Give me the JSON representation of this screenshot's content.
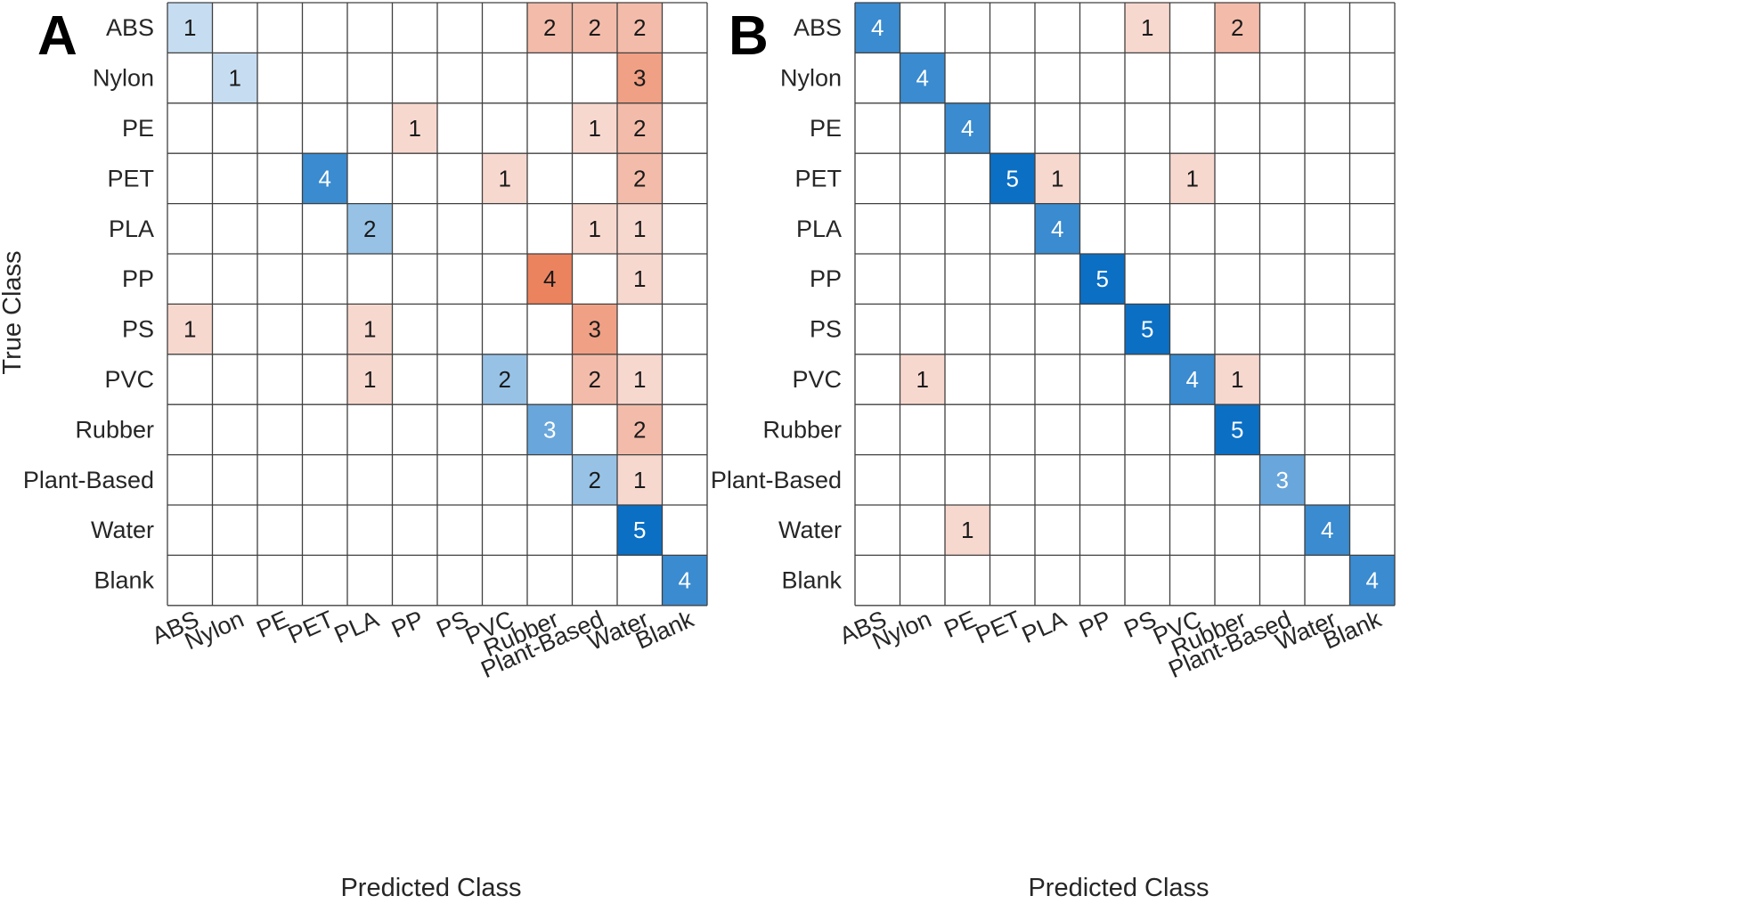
{
  "chart_data": [
    {
      "type": "heatmap",
      "panel": "A",
      "xlabel": "Predicted Class",
      "ylabel": "True Class",
      "rows": [
        "ABS",
        "Nylon",
        "PE",
        "PET",
        "PLA",
        "PP",
        "PS",
        "PVC",
        "Rubber",
        "Plant-Based",
        "Water",
        "Blank"
      ],
      "columns": [
        "ABS",
        "Nylon",
        "PE",
        "PET",
        "PLA",
        "PP",
        "PS",
        "PVC",
        "Rubber",
        "Plant-Based",
        "Water",
        "Blank"
      ],
      "values": [
        [
          1,
          0,
          0,
          0,
          0,
          0,
          0,
          0,
          2,
          2,
          2,
          0
        ],
        [
          0,
          1,
          0,
          0,
          0,
          0,
          0,
          0,
          0,
          0,
          3,
          0
        ],
        [
          0,
          0,
          0,
          0,
          0,
          1,
          0,
          0,
          0,
          1,
          2,
          0
        ],
        [
          0,
          0,
          0,
          4,
          0,
          0,
          0,
          1,
          0,
          0,
          2,
          0
        ],
        [
          0,
          0,
          0,
          0,
          2,
          0,
          0,
          0,
          0,
          1,
          1,
          0
        ],
        [
          0,
          0,
          0,
          0,
          0,
          0,
          0,
          0,
          4,
          0,
          1,
          0
        ],
        [
          1,
          0,
          0,
          0,
          1,
          0,
          0,
          0,
          0,
          3,
          0,
          0
        ],
        [
          0,
          0,
          0,
          0,
          1,
          0,
          0,
          2,
          0,
          2,
          1,
          0
        ],
        [
          0,
          0,
          0,
          0,
          0,
          0,
          0,
          0,
          3,
          0,
          2,
          0
        ],
        [
          0,
          0,
          0,
          0,
          0,
          0,
          0,
          0,
          0,
          2,
          1,
          0
        ],
        [
          0,
          0,
          0,
          0,
          0,
          0,
          0,
          0,
          0,
          0,
          5,
          0
        ],
        [
          0,
          0,
          0,
          0,
          0,
          0,
          0,
          0,
          0,
          0,
          0,
          4
        ]
      ]
    },
    {
      "type": "heatmap",
      "panel": "B",
      "xlabel": "Predicted Class",
      "ylabel": "",
      "rows": [
        "ABS",
        "Nylon",
        "PE",
        "PET",
        "PLA",
        "PP",
        "PS",
        "PVC",
        "Rubber",
        "Plant-Based",
        "Water",
        "Blank"
      ],
      "columns": [
        "ABS",
        "Nylon",
        "PE",
        "PET",
        "PLA",
        "PP",
        "PS",
        "PVC",
        "Rubber",
        "Plant-Based",
        "Water",
        "Blank"
      ],
      "values": [
        [
          4,
          0,
          0,
          0,
          0,
          0,
          1,
          0,
          2,
          0,
          0,
          0
        ],
        [
          0,
          4,
          0,
          0,
          0,
          0,
          0,
          0,
          0,
          0,
          0,
          0
        ],
        [
          0,
          0,
          4,
          0,
          0,
          0,
          0,
          0,
          0,
          0,
          0,
          0
        ],
        [
          0,
          0,
          0,
          5,
          1,
          0,
          0,
          1,
          0,
          0,
          0,
          0
        ],
        [
          0,
          0,
          0,
          0,
          4,
          0,
          0,
          0,
          0,
          0,
          0,
          0
        ],
        [
          0,
          0,
          0,
          0,
          0,
          5,
          0,
          0,
          0,
          0,
          0,
          0
        ],
        [
          0,
          0,
          0,
          0,
          0,
          0,
          5,
          0,
          0,
          0,
          0,
          0
        ],
        [
          0,
          1,
          0,
          0,
          0,
          0,
          0,
          4,
          1,
          0,
          0,
          0
        ],
        [
          0,
          0,
          0,
          0,
          0,
          0,
          0,
          0,
          5,
          0,
          0,
          0
        ],
        [
          0,
          0,
          0,
          0,
          0,
          0,
          0,
          0,
          0,
          3,
          0,
          0
        ],
        [
          0,
          0,
          1,
          0,
          0,
          0,
          0,
          0,
          0,
          0,
          4,
          0
        ],
        [
          0,
          0,
          0,
          0,
          0,
          0,
          0,
          0,
          0,
          0,
          0,
          4
        ]
      ]
    }
  ],
  "colors": {
    "correct_light": "#c6ddf1",
    "correct_dark": "#0b6fc4",
    "error_light": "#f7d8cf",
    "error_dark": "#e8673a",
    "grid": "#404040",
    "text_dark": "#1a1a1a",
    "text_light": "#ffffff",
    "max_count": 5
  }
}
